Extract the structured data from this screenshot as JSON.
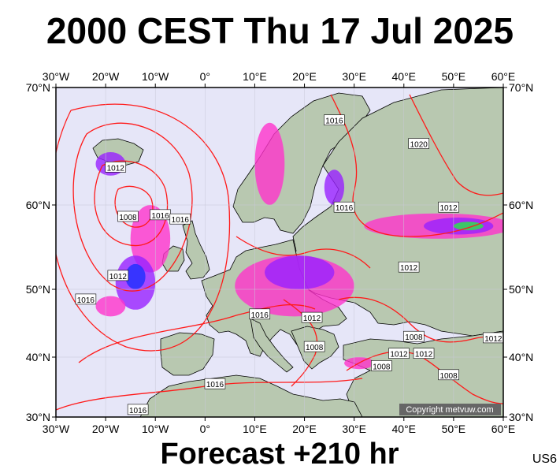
{
  "title": "2000 CEST Thu 17 Jul 2025",
  "subtitle": "Forecast +210 hr",
  "model_code": "US6",
  "copyright": "Copyright metvuw.com",
  "map": {
    "lon_range": [
      -30,
      60
    ],
    "lat_range": [
      30,
      70
    ],
    "lon_ticks": [
      "30°W",
      "20°W",
      "10°W",
      "0°",
      "10°E",
      "20°E",
      "30°E",
      "40°E",
      "50°E",
      "60°E"
    ],
    "lat_ticks": [
      "70°N",
      "60°N",
      "50°N",
      "40°N",
      "30°N"
    ],
    "colors": {
      "sea": "#e6e6f8",
      "land": "#b8c8b0",
      "isobar": "#ff1a1a",
      "precip_light": "#ff33cc",
      "precip_mid": "#9922ff",
      "precip_heavy": "#1a30ff",
      "precip_extreme": "#22ee44"
    },
    "isobar_labels": [
      {
        "text": "1012",
        "lon": -18,
        "lat": 63.2
      },
      {
        "text": "1008",
        "lon": -15.5,
        "lat": 58.6
      },
      {
        "text": "1016",
        "lon": -9,
        "lat": 58.8
      },
      {
        "text": "1016",
        "lon": -5,
        "lat": 58.3
      },
      {
        "text": "1012",
        "lon": -17.5,
        "lat": 51.6
      },
      {
        "text": "1016",
        "lon": -24,
        "lat": 48.5
      },
      {
        "text": "1016",
        "lon": 26,
        "lat": 67.2
      },
      {
        "text": "1020",
        "lon": 43,
        "lat": 65.2
      },
      {
        "text": "1016",
        "lon": 28,
        "lat": 59.7
      },
      {
        "text": "1012",
        "lon": 49,
        "lat": 59.7
      },
      {
        "text": "1012",
        "lon": 41,
        "lat": 52.6
      },
      {
        "text": "1016",
        "lon": 11,
        "lat": 46.3
      },
      {
        "text": "1012",
        "lon": 21.5,
        "lat": 45.8
      },
      {
        "text": "1008",
        "lon": 22,
        "lat": 41.5
      },
      {
        "text": "1008",
        "lon": 42,
        "lat": 43.0
      },
      {
        "text": "1012",
        "lon": 44,
        "lat": 40.5
      },
      {
        "text": "1012",
        "lon": 39,
        "lat": 40.5
      },
      {
        "text": "1012",
        "lon": 58,
        "lat": 42.8
      },
      {
        "text": "1008",
        "lon": 35.5,
        "lat": 38.5
      },
      {
        "text": "1008",
        "lon": 49,
        "lat": 37.0
      },
      {
        "text": "1016",
        "lon": 2,
        "lat": 35.5
      },
      {
        "text": "1016",
        "lon": -13.5,
        "lat": 31.2
      }
    ]
  }
}
